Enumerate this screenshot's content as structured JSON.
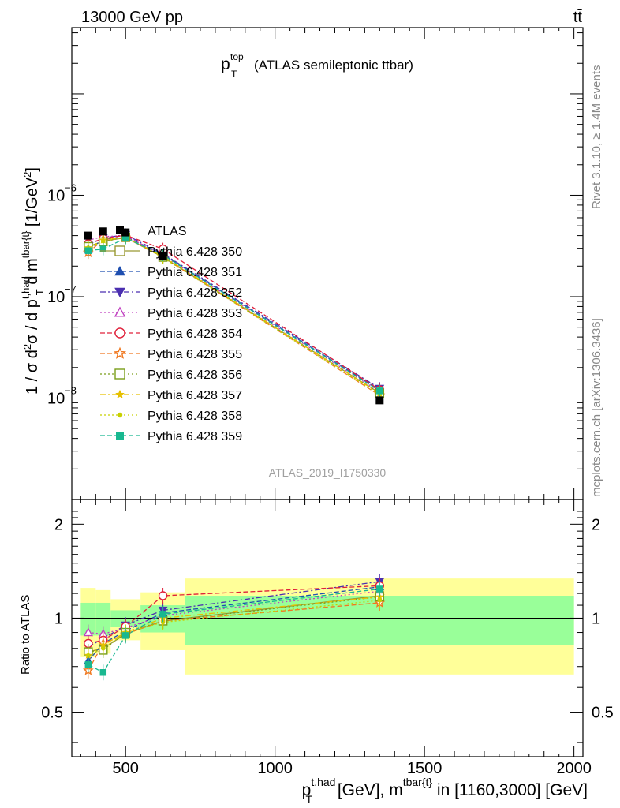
{
  "header": {
    "left": "13000 GeV pp",
    "right": "tt̄"
  },
  "title": {
    "main": "p",
    "sub": "T",
    "sup": "top",
    "rest": "(ATLAS semileptonic ttbar)"
  },
  "side_right_top": "Rivet 3.1.10, ≥ 1.4M events",
  "side_right_bottom": "mcplots.cern.ch [arXiv:1306.3436]",
  "watermark": "ATLAS_2019_I1750330",
  "y_axis_main": {
    "a": "1 / σ d",
    "b": "2",
    "c": "σ / d p",
    "d": "t,had",
    "e": "T",
    "f": " d m",
    "g": "tbar{t}",
    "h": " [1/GeV",
    "i": "2",
    "j": "]"
  },
  "y_axis_ratio": "Ratio to ATLAS",
  "x_axis": {
    "a": "p",
    "b": "t,had",
    "c": "T",
    "d": " [GeV], m",
    "e": "tbar{t}",
    "f": " in [1160,3000] [GeV]"
  },
  "main_ticks": [
    {
      "base": "10",
      "exp": "−6",
      "value": 1e-06
    },
    {
      "base": "10",
      "exp": "−7",
      "value": 1e-07
    },
    {
      "base": "10",
      "exp": "−8",
      "value": 1e-08
    }
  ],
  "ratio_ticks": [
    {
      "label": "2",
      "value": 2
    },
    {
      "label": "1",
      "value": 1
    },
    {
      "label": "0.5",
      "value": 0.5
    }
  ],
  "x_ticks": [
    {
      "label": "500",
      "value": 500
    },
    {
      "label": "1000",
      "value": 1000
    },
    {
      "label": "1500",
      "value": 1500
    },
    {
      "label": "2000",
      "value": 2000
    }
  ],
  "chart_data": {
    "type": "scatter",
    "xlim": [
      320,
      2030
    ],
    "ylim": [
      1e-09,
      4.5e-05
    ],
    "yscale": "log",
    "ratio_ylim": [
      0.36,
      2.4
    ],
    "ratio_yscale": "log",
    "legend_position": "middle-left",
    "x": [
      375,
      425,
      500,
      625,
      1350
    ],
    "bins": [
      [
        350,
        400
      ],
      [
        400,
        450
      ],
      [
        450,
        550
      ],
      [
        550,
        700
      ],
      [
        700,
        2000
      ]
    ],
    "data": {
      "name": "ATLAS",
      "color": "#000000",
      "values": [
        4e-07,
        4.4e-07,
        4.3e-07,
        2.5e-07,
        9.5e-09
      ]
    },
    "band_inner": [
      0.12,
      0.12,
      0.06,
      0.1,
      0.18
    ],
    "band_outer": [
      0.25,
      0.23,
      0.15,
      0.21,
      0.34
    ],
    "series": [
      {
        "name": "Pythia 6.428 350",
        "color": "#999933",
        "dash": "",
        "marker": "square-open",
        "ratio": [
          0.78,
          0.8,
          0.89,
          0.98,
          1.18
        ]
      },
      {
        "name": "Pythia 6.428 351",
        "color": "#1f4fb0",
        "dash": "6,3",
        "marker": "triangle-up",
        "ratio": [
          0.73,
          0.83,
          0.91,
          1.04,
          1.26
        ]
      },
      {
        "name": "Pythia 6.428 352",
        "color": "#4b2fb0",
        "dash": "7,3,2,3",
        "marker": "triangle-down",
        "ratio": [
          0.81,
          0.86,
          0.95,
          1.06,
          1.31
        ]
      },
      {
        "name": "Pythia 6.428 353",
        "color": "#c040c0",
        "dash": "2,3",
        "marker": "triangle-open",
        "ratio": [
          0.9,
          0.89,
          0.93,
          1.02,
          1.22
        ]
      },
      {
        "name": "Pythia 6.428 354",
        "color": "#e0203a",
        "dash": "6,3",
        "marker": "circle-open",
        "ratio": [
          0.83,
          0.85,
          0.94,
          1.18,
          1.27
        ]
      },
      {
        "name": "Pythia 6.428 355",
        "color": "#f07820",
        "dash": "6,3",
        "marker": "star-open",
        "ratio": [
          0.68,
          0.83,
          0.89,
          0.98,
          1.12
        ]
      },
      {
        "name": "Pythia 6.428 356",
        "color": "#7a9e1a",
        "dash": "2,3",
        "marker": "square-open",
        "ratio": [
          0.78,
          0.79,
          0.9,
          0.98,
          1.17
        ]
      },
      {
        "name": "Pythia 6.428 357",
        "color": "#e6c000",
        "dash": "7,3,2,3",
        "marker": "star-small",
        "ratio": [
          0.76,
          0.82,
          0.9,
          1.0,
          1.17
        ]
      },
      {
        "name": "Pythia 6.428 358",
        "color": "#c8d000",
        "dash": "2,3",
        "marker": "dot",
        "ratio": [
          0.76,
          0.8,
          0.9,
          0.97,
          1.14
        ]
      },
      {
        "name": "Pythia 6.428 359",
        "color": "#18b890",
        "dash": "6,3",
        "marker": "square-filled",
        "ratio": [
          0.71,
          0.67,
          0.88,
          1.03,
          1.24
        ]
      }
    ]
  }
}
